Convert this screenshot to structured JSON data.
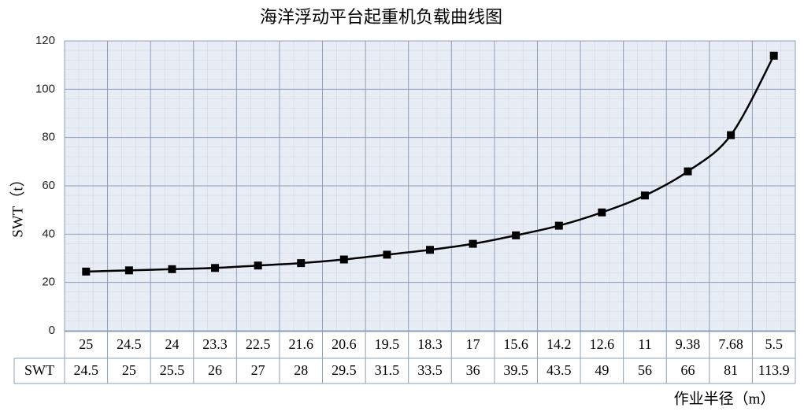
{
  "chart_data": {
    "type": "line",
    "title": "海洋浮动平台起重机负载曲线图",
    "x_label": "作业半径（m）",
    "y_label": "SWT（t）",
    "categories": [
      "25",
      "24.5",
      "24",
      "23.3",
      "22.5",
      "21.6",
      "20.6",
      "19.5",
      "18.3",
      "17",
      "15.6",
      "14.2",
      "12.6",
      "11",
      "9.38",
      "7.68",
      "5.5"
    ],
    "series": [
      {
        "name": "SWT",
        "color": "#000000",
        "values": [
          24.5,
          25,
          25.5,
          26,
          27,
          28,
          29.5,
          31.5,
          33.5,
          36,
          39.5,
          43.5,
          49,
          56,
          66,
          81,
          113.9
        ]
      }
    ],
    "ylim": [
      0,
      120
    ],
    "yticks": [
      0,
      20,
      40,
      60,
      80,
      100,
      120
    ],
    "grid": true
  }
}
